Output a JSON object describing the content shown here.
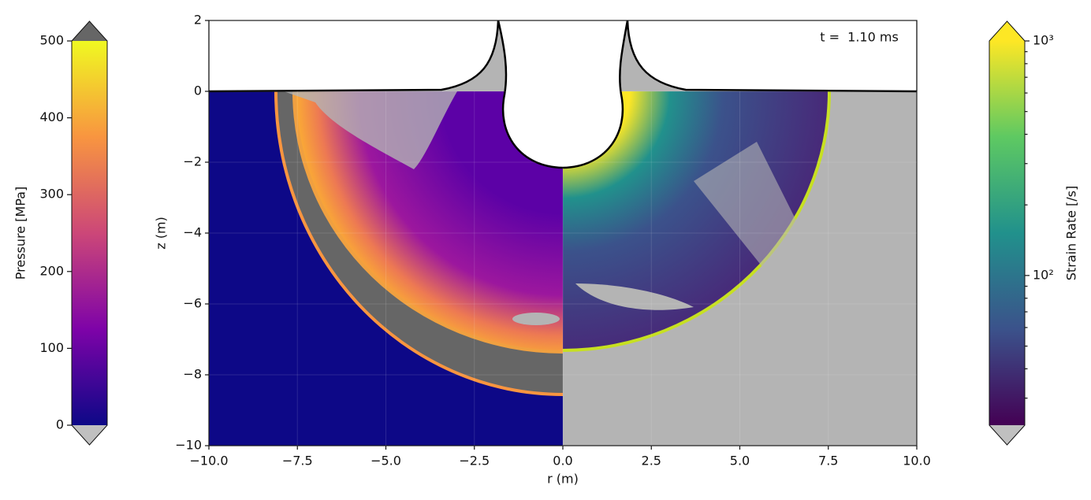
{
  "chart_data": {
    "type": "field",
    "annotation": "t =  1.10 ms",
    "xlabel": "r (m)",
    "ylabel": "z (m)",
    "xlim": [
      -10,
      10
    ],
    "xticks": [
      {
        "value": -10,
        "label": "−10.0"
      },
      {
        "value": -7.5,
        "label": "−7.5"
      },
      {
        "value": -5,
        "label": "−5.0"
      },
      {
        "value": -2.5,
        "label": "−2.5"
      },
      {
        "value": 0,
        "label": "0.0"
      },
      {
        "value": 2.5,
        "label": "2.5"
      },
      {
        "value": 5,
        "label": "5.0"
      },
      {
        "value": 7.5,
        "label": "7.5"
      },
      {
        "value": 10,
        "label": "10.0"
      }
    ],
    "ylim": [
      -10,
      2
    ],
    "yticks": [
      {
        "value": -10,
        "label": "−10"
      },
      {
        "value": -8,
        "label": "−8"
      },
      {
        "value": -6,
        "label": "−6"
      },
      {
        "value": -4,
        "label": "−4"
      },
      {
        "value": -2,
        "label": "−2"
      },
      0,
      2
    ],
    "colorbars": [
      {
        "label": "Pressure [MPa]",
        "scale": "linear",
        "lim": [
          0,
          500
        ],
        "ticks": [
          0,
          100,
          200,
          300,
          400,
          500
        ],
        "colors": [
          "#0d0887",
          "#7e03a8",
          "#cc4778",
          "#f89540",
          "#f0f921"
        ],
        "under": "#c0c0c0",
        "over": "#666666"
      },
      {
        "label": "Strain Rate [/s]",
        "scale": "log",
        "lim": [
          23,
          1000
        ],
        "ticks": [
          {
            "value": 100,
            "label": "10²"
          },
          {
            "value": 1000,
            "label": "10³"
          }
        ],
        "colors": [
          "#440154",
          "#3b528b",
          "#21918c",
          "#5ec962",
          "#fde725"
        ],
        "under": "#c0c0c0",
        "over": "#fde725"
      }
    ]
  }
}
